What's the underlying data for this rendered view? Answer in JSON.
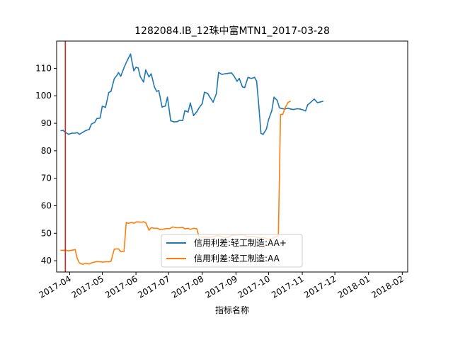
{
  "chart_data": {
    "type": "line",
    "title": "1282084.IB_12珠中富MTN1_2017-03-28",
    "xlabel": "指标名称",
    "ylabel": "",
    "x_ticks": [
      "2017-04",
      "2017-05",
      "2017-06",
      "2017-07",
      "2017-08",
      "2017-09",
      "2017-10",
      "2017-11",
      "2017-12",
      "2018-01",
      "2018-02"
    ],
    "y_ticks": [
      40,
      50,
      60,
      70,
      80,
      90,
      100,
      110
    ],
    "xlim": [
      "2017-03-20",
      "2018-02-06"
    ],
    "ylim": [
      35.9,
      119.9
    ],
    "vline": {
      "x": "2017-03-28",
      "color": "#d62728"
    },
    "legend_position": "lower center",
    "grid": false,
    "series": [
      {
        "name": "信用利差:轻工制造:AA+",
        "color": "#1f77b4",
        "points": [
          [
            "2017-03-24",
            87.3
          ],
          [
            "2017-03-26",
            87.4
          ],
          [
            "2017-03-28",
            86.7
          ],
          [
            "2017-03-31",
            86.0
          ],
          [
            "2017-04-03",
            86.4
          ],
          [
            "2017-04-06",
            86.4
          ],
          [
            "2017-04-08",
            86.6
          ],
          [
            "2017-04-10",
            86.0
          ],
          [
            "2017-04-13",
            86.7
          ],
          [
            "2017-04-16",
            87.4
          ],
          [
            "2017-04-19",
            87.8
          ],
          [
            "2017-04-21",
            89.7
          ],
          [
            "2017-04-24",
            90.3
          ],
          [
            "2017-04-26",
            91.7
          ],
          [
            "2017-04-29",
            91.9
          ],
          [
            "2017-05-01",
            96.2
          ],
          [
            "2017-05-04",
            95.8
          ],
          [
            "2017-05-07",
            101.2
          ],
          [
            "2017-05-09",
            101.6
          ],
          [
            "2017-05-12",
            106.2
          ],
          [
            "2017-05-14",
            107.2
          ],
          [
            "2017-05-16",
            108.4
          ],
          [
            "2017-05-18",
            107.1
          ],
          [
            "2017-05-21",
            110.2
          ],
          [
            "2017-05-24",
            112.9
          ],
          [
            "2017-05-27",
            115.2
          ],
          [
            "2017-05-30",
            109.1
          ],
          [
            "2017-06-01",
            110.4
          ],
          [
            "2017-06-03",
            110.1
          ],
          [
            "2017-06-05",
            107.0
          ],
          [
            "2017-06-08",
            105.0
          ],
          [
            "2017-06-10",
            109.4
          ],
          [
            "2017-06-13",
            106.9
          ],
          [
            "2017-06-15",
            108.0
          ],
          [
            "2017-06-18",
            103.2
          ],
          [
            "2017-06-20",
            101.6
          ],
          [
            "2017-06-22",
            101.9
          ],
          [
            "2017-06-25",
            95.9
          ],
          [
            "2017-06-28",
            96.3
          ],
          [
            "2017-06-30",
            99.5
          ],
          [
            "2017-07-03",
            90.9
          ],
          [
            "2017-07-06",
            90.5
          ],
          [
            "2017-07-09",
            90.6
          ],
          [
            "2017-07-11",
            91.1
          ],
          [
            "2017-07-14",
            91.0
          ],
          [
            "2017-07-16",
            94.6
          ],
          [
            "2017-07-19",
            94.1
          ],
          [
            "2017-07-21",
            97.4
          ],
          [
            "2017-07-24",
            92.8
          ],
          [
            "2017-07-27",
            94.2
          ],
          [
            "2017-07-29",
            95.6
          ],
          [
            "2017-08-01",
            97.2
          ],
          [
            "2017-08-03",
            101.3
          ],
          [
            "2017-08-06",
            100.9
          ],
          [
            "2017-08-08",
            99.5
          ],
          [
            "2017-08-11",
            97.7
          ],
          [
            "2017-08-14",
            100.8
          ],
          [
            "2017-08-16",
            108.5
          ],
          [
            "2017-08-19",
            107.8
          ],
          [
            "2017-08-22",
            108.0
          ],
          [
            "2017-08-25",
            108.2
          ],
          [
            "2017-08-28",
            108.3
          ],
          [
            "2017-08-30",
            107.3
          ],
          [
            "2017-09-02",
            105.3
          ],
          [
            "2017-09-04",
            106.3
          ],
          [
            "2017-09-07",
            103.2
          ],
          [
            "2017-09-09",
            103.0
          ],
          [
            "2017-09-12",
            106.7
          ],
          [
            "2017-09-15",
            106.3
          ],
          [
            "2017-09-18",
            106.7
          ],
          [
            "2017-09-20",
            105.3
          ],
          [
            "2017-09-22",
            96.5
          ],
          [
            "2017-09-24",
            86.3
          ],
          [
            "2017-09-26",
            86.0
          ],
          [
            "2017-09-29",
            87.9
          ],
          [
            "2017-10-01",
            91.3
          ],
          [
            "2017-10-04",
            94.6
          ],
          [
            "2017-10-06",
            99.5
          ],
          [
            "2017-10-09",
            98.3
          ],
          [
            "2017-10-11",
            95.6
          ],
          [
            "2017-10-14",
            95.3
          ],
          [
            "2017-10-16",
            95.2
          ],
          [
            "2017-10-19",
            95.5
          ],
          [
            "2017-10-21",
            95.2
          ],
          [
            "2017-10-24",
            95.0
          ],
          [
            "2017-10-27",
            95.3
          ],
          [
            "2017-10-30",
            95.2
          ],
          [
            "2017-11-02",
            94.8
          ],
          [
            "2017-11-04",
            94.5
          ],
          [
            "2017-11-06",
            96.7
          ],
          [
            "2017-11-09",
            97.7
          ],
          [
            "2017-11-12",
            98.8
          ],
          [
            "2017-11-15",
            97.5
          ],
          [
            "2017-11-17",
            97.7
          ],
          [
            "2017-11-20",
            98.0
          ]
        ]
      },
      {
        "name": "信用利差:轻工制造:AA",
        "color": "#ff7f0e",
        "points": [
          [
            "2017-03-24",
            43.8
          ],
          [
            "2017-03-28",
            43.8
          ],
          [
            "2017-03-31",
            43.6
          ],
          [
            "2017-04-03",
            43.8
          ],
          [
            "2017-04-06",
            44.1
          ],
          [
            "2017-04-08",
            40.8
          ],
          [
            "2017-04-10",
            39.2
          ],
          [
            "2017-04-13",
            38.7
          ],
          [
            "2017-04-16",
            39.1
          ],
          [
            "2017-04-19",
            38.8
          ],
          [
            "2017-04-21",
            39.2
          ],
          [
            "2017-04-24",
            39.5
          ],
          [
            "2017-04-26",
            39.7
          ],
          [
            "2017-04-29",
            39.6
          ],
          [
            "2017-05-01",
            39.5
          ],
          [
            "2017-05-04",
            39.6
          ],
          [
            "2017-05-07",
            39.6
          ],
          [
            "2017-05-09",
            39.8
          ],
          [
            "2017-05-12",
            44.2
          ],
          [
            "2017-05-14",
            44.3
          ],
          [
            "2017-05-16",
            44.3
          ],
          [
            "2017-05-18",
            43.3
          ],
          [
            "2017-05-21",
            43.4
          ],
          [
            "2017-05-23",
            53.9
          ],
          [
            "2017-05-25",
            53.6
          ],
          [
            "2017-05-28",
            53.9
          ],
          [
            "2017-05-30",
            53.6
          ],
          [
            "2017-06-01",
            54.1
          ],
          [
            "2017-06-04",
            54.1
          ],
          [
            "2017-06-06",
            54.0
          ],
          [
            "2017-06-08",
            54.2
          ],
          [
            "2017-06-10",
            53.8
          ],
          [
            "2017-06-13",
            51.1
          ],
          [
            "2017-06-15",
            52.0
          ],
          [
            "2017-06-18",
            51.8
          ],
          [
            "2017-06-21",
            51.8
          ],
          [
            "2017-06-23",
            51.3
          ],
          [
            "2017-06-26",
            51.5
          ],
          [
            "2017-06-29",
            51.7
          ],
          [
            "2017-07-02",
            51.7
          ],
          [
            "2017-07-05",
            52.3
          ],
          [
            "2017-07-08",
            52.0
          ],
          [
            "2017-07-11",
            52.0
          ],
          [
            "2017-07-14",
            52.1
          ],
          [
            "2017-07-16",
            51.6
          ],
          [
            "2017-07-19",
            51.8
          ],
          [
            "2017-07-21",
            51.4
          ],
          [
            "2017-07-24",
            51.8
          ],
          [
            "2017-07-27",
            51.6
          ],
          [
            "2017-07-29",
            48.7
          ],
          [
            "2017-08-01",
            48.5
          ],
          [
            "2017-08-04",
            48.6
          ],
          [
            "2017-08-07",
            48.5
          ],
          [
            "2017-08-10",
            48.6
          ],
          [
            "2017-08-13",
            49.0
          ],
          [
            "2017-08-16",
            49.1
          ],
          [
            "2017-08-19",
            48.7
          ],
          [
            "2017-08-22",
            48.3
          ],
          [
            "2017-08-25",
            48.6
          ],
          [
            "2017-08-28",
            49.2
          ],
          [
            "2017-08-31",
            49.3
          ],
          [
            "2017-09-03",
            49.4
          ],
          [
            "2017-09-06",
            49.5
          ],
          [
            "2017-09-09",
            49.4
          ],
          [
            "2017-09-11",
            48.7
          ],
          [
            "2017-09-14",
            48.8
          ],
          [
            "2017-09-17",
            48.9
          ],
          [
            "2017-09-20",
            48.5
          ],
          [
            "2017-09-23",
            48.3
          ],
          [
            "2017-09-26",
            48.4
          ],
          [
            "2017-09-29",
            48.1
          ],
          [
            "2017-10-02",
            47.7
          ],
          [
            "2017-10-05",
            48.3
          ],
          [
            "2017-10-08",
            48.7
          ],
          [
            "2017-10-10",
            49.1
          ],
          [
            "2017-10-12",
            93.2
          ],
          [
            "2017-10-14",
            93.2
          ],
          [
            "2017-10-16",
            95.5
          ],
          [
            "2017-10-19",
            97.6
          ],
          [
            "2017-10-21",
            98.0
          ]
        ]
      }
    ]
  }
}
